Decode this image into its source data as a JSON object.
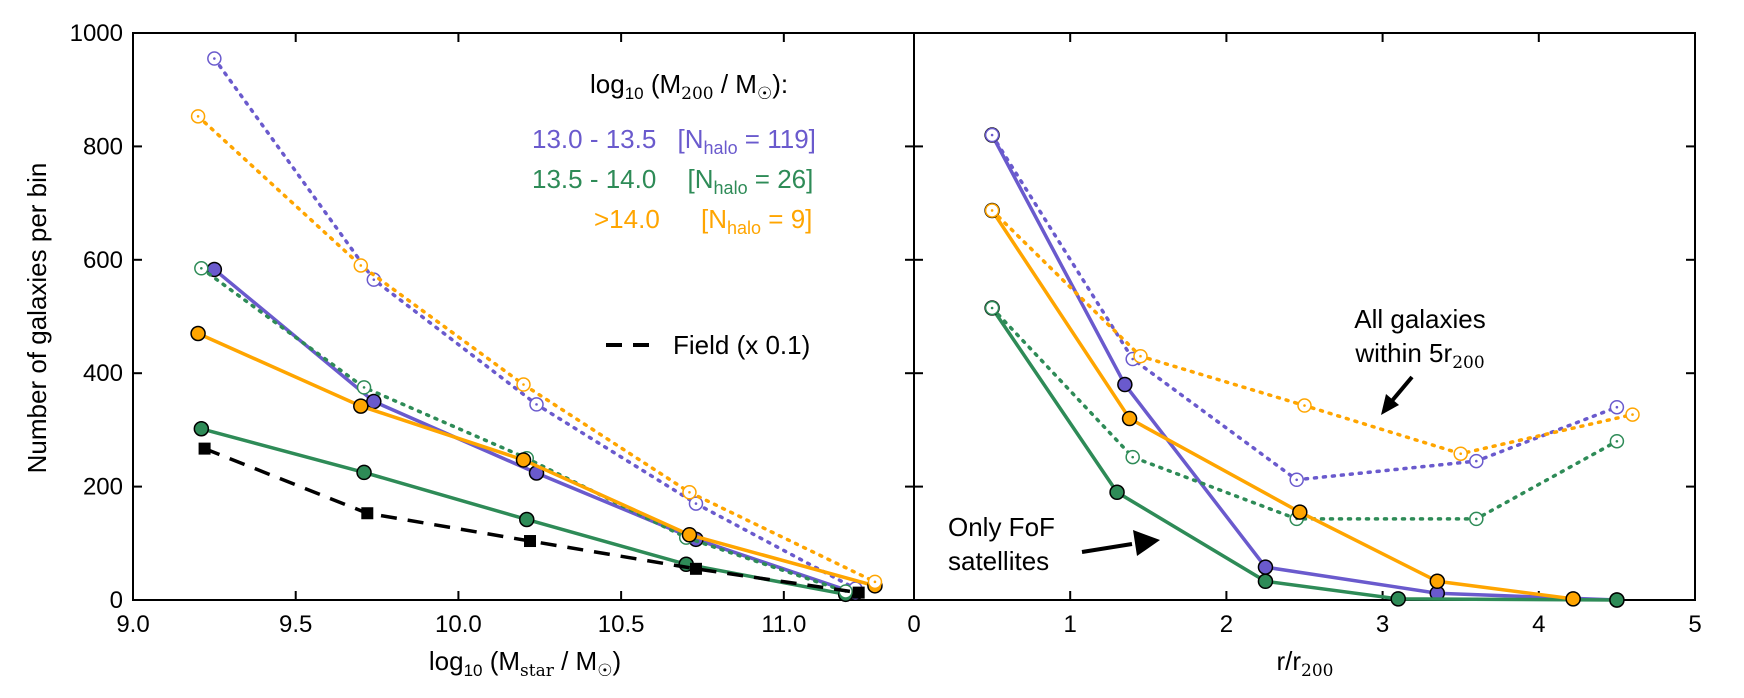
{
  "chart_data": [
    {
      "type": "line",
      "panel": "left",
      "xlabel": "log10 (Mstar / M☉)",
      "ylabel": "Number of galaxies per bin",
      "xlim": [
        9.0,
        11.4
      ],
      "ylim": [
        0,
        1000
      ],
      "xticks": [
        "9.0",
        "9.5",
        "10.0",
        "10.5",
        "11.0"
      ],
      "xtick_values": [
        9.0,
        9.5,
        10.0,
        10.5,
        11.0
      ],
      "yticks": [
        "0",
        "200",
        "400",
        "600",
        "800",
        "1000"
      ],
      "ytick_values": [
        0,
        200,
        400,
        600,
        800,
        1000
      ],
      "grid": false,
      "series": [
        {
          "key": "purple-satellites",
          "color": "#6a5acd",
          "style": "solid",
          "marker": "filled-circle",
          "x": [
            9.25,
            9.74,
            10.24,
            10.73,
            11.22
          ],
          "y": [
            583,
            350,
            224,
            107,
            12
          ]
        },
        {
          "key": "purple-all",
          "color": "#6a5acd",
          "style": "dotted",
          "marker": "open-circle",
          "x": [
            9.25,
            9.74,
            10.24,
            10.73,
            11.22
          ],
          "y": [
            955,
            565,
            345,
            170,
            20
          ]
        },
        {
          "key": "green-satellites",
          "color": "#2e8b57",
          "style": "solid",
          "marker": "filled-circle",
          "x": [
            9.21,
            9.71,
            10.21,
            10.7,
            11.19
          ],
          "y": [
            302,
            225,
            142,
            63,
            10
          ]
        },
        {
          "key": "green-all",
          "color": "#2e8b57",
          "style": "dotted",
          "marker": "open-circle",
          "x": [
            9.21,
            9.71,
            10.21,
            10.7,
            11.19
          ],
          "y": [
            585,
            375,
            250,
            110,
            15
          ]
        },
        {
          "key": "orange-satellites",
          "color": "#ffa500",
          "style": "solid",
          "marker": "filled-circle",
          "x": [
            9.2,
            9.7,
            10.2,
            10.71,
            11.28
          ],
          "y": [
            470,
            342,
            247,
            115,
            25
          ]
        },
        {
          "key": "orange-all",
          "color": "#ffa500",
          "style": "dotted",
          "marker": "open-circle",
          "x": [
            9.2,
            9.7,
            10.2,
            10.71,
            11.28
          ],
          "y": [
            853,
            590,
            380,
            190,
            32
          ]
        },
        {
          "key": "field",
          "color": "#000000",
          "style": "dashed",
          "marker": "square",
          "x": [
            9.22,
            9.72,
            10.22,
            10.73,
            11.23
          ],
          "y": [
            267,
            153,
            104,
            55,
            13
          ]
        }
      ]
    },
    {
      "type": "line",
      "panel": "right",
      "xlabel": "r/r200",
      "xlim": [
        0,
        5
      ],
      "ylim": [
        0,
        1000
      ],
      "xticks": [
        "0",
        "1",
        "2",
        "3",
        "4",
        "5"
      ],
      "xtick_values": [
        0,
        1,
        2,
        3,
        4,
        5
      ],
      "grid": false,
      "series": [
        {
          "key": "purple-satellites",
          "color": "#6a5acd",
          "style": "solid",
          "marker": "filled-circle",
          "x": [
            0.5,
            1.35,
            2.25,
            3.35,
            4.5
          ],
          "y": [
            820,
            380,
            58,
            12,
            0
          ]
        },
        {
          "key": "purple-all",
          "color": "#6a5acd",
          "style": "dotted",
          "marker": "open-circle",
          "x": [
            0.5,
            1.4,
            2.45,
            3.6,
            4.5
          ],
          "y": [
            820,
            425,
            212,
            245,
            340
          ]
        },
        {
          "key": "green-satellites",
          "color": "#2e8b57",
          "style": "solid",
          "marker": "filled-circle",
          "x": [
            0.5,
            1.3,
            2.25,
            3.1,
            4.5
          ],
          "y": [
            515,
            190,
            33,
            2,
            0
          ]
        },
        {
          "key": "green-all",
          "color": "#2e8b57",
          "style": "dotted",
          "marker": "open-circle",
          "x": [
            0.5,
            1.4,
            2.45,
            3.6,
            4.5
          ],
          "y": [
            515,
            252,
            143,
            143,
            280
          ]
        },
        {
          "key": "orange-satellites",
          "color": "#ffa500",
          "style": "solid",
          "marker": "filled-circle",
          "x": [
            0.5,
            1.38,
            2.47,
            3.35,
            4.22
          ],
          "y": [
            687,
            320,
            155,
            33,
            2
          ]
        },
        {
          "key": "orange-all",
          "color": "#ffa500",
          "style": "dotted",
          "marker": "open-circle",
          "x": [
            0.5,
            1.45,
            2.5,
            3.5,
            4.6
          ],
          "y": [
            687,
            430,
            343,
            258,
            327
          ]
        }
      ]
    }
  ],
  "legend": {
    "title": "log10 (M200 / M☉):",
    "entries": [
      {
        "range": "13.0 - 13.5",
        "nhalo": "[Nhalo = 119]",
        "color": "#6a5acd"
      },
      {
        "range": "13.5 - 14.0",
        "nhalo": "[Nhalo = 26]",
        "color": "#2e8b57"
      },
      {
        "range": ">14.0",
        "nhalo": "[Nhalo = 9]",
        "color": "#ffa500"
      }
    ],
    "field": "Field (x 0.1)"
  },
  "annotations": {
    "all_galaxies_line1": "All galaxies",
    "all_galaxies_line2": "within 5r200",
    "satellites_line1": "Only FoF",
    "satellites_line2": "satellites"
  }
}
